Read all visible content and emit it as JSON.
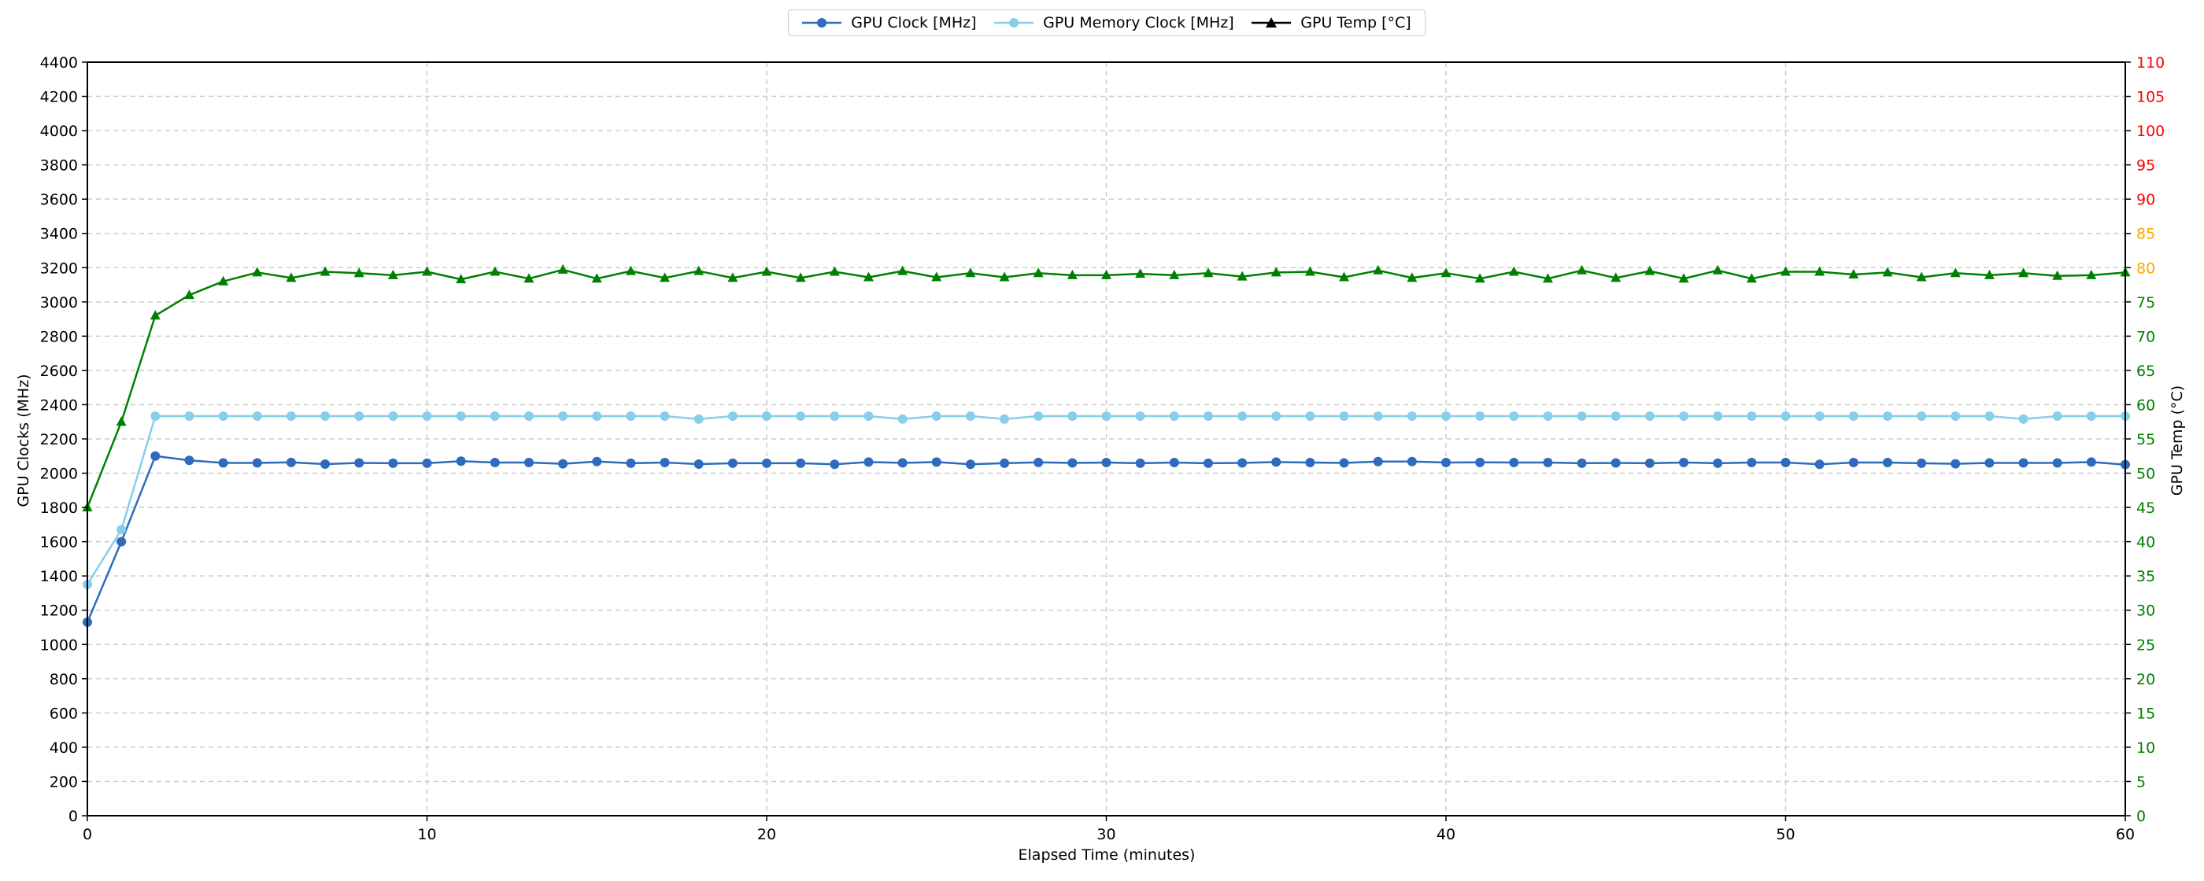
{
  "chart_data": {
    "type": "line",
    "title": "",
    "xlabel": "Elapsed Time (minutes)",
    "ylabel": "GPU Clocks (MHz)",
    "y2label": "GPU Temp (°C)",
    "xlim": [
      0,
      60
    ],
    "ylim": [
      0,
      4400
    ],
    "y2lim": [
      0,
      110
    ],
    "grid": true,
    "legend_position": "top-center",
    "x_ticks": [
      "0",
      "10",
      "20",
      "30",
      "40",
      "50",
      "60"
    ],
    "y_ticks": [
      "0",
      "200",
      "400",
      "600",
      "800",
      "1000",
      "1200",
      "1400",
      "1600",
      "1800",
      "2000",
      "2200",
      "2400",
      "2600",
      "2800",
      "3000",
      "3200",
      "3400",
      "3600",
      "3800",
      "4000",
      "4200",
      "4400"
    ],
    "y2_ticks": [
      {
        "label": "0",
        "color": "#008000"
      },
      {
        "label": "5",
        "color": "#008000"
      },
      {
        "label": "10",
        "color": "#008000"
      },
      {
        "label": "15",
        "color": "#008000"
      },
      {
        "label": "20",
        "color": "#008000"
      },
      {
        "label": "25",
        "color": "#008000"
      },
      {
        "label": "30",
        "color": "#008000"
      },
      {
        "label": "35",
        "color": "#008000"
      },
      {
        "label": "40",
        "color": "#008000"
      },
      {
        "label": "45",
        "color": "#008000"
      },
      {
        "label": "50",
        "color": "#008000"
      },
      {
        "label": "55",
        "color": "#008000"
      },
      {
        "label": "60",
        "color": "#008000"
      },
      {
        "label": "65",
        "color": "#008000"
      },
      {
        "label": "70",
        "color": "#008000"
      },
      {
        "label": "75",
        "color": "#008000"
      },
      {
        "label": "80",
        "color": "#FFA500"
      },
      {
        "label": "85",
        "color": "#FFA500"
      },
      {
        "label": "90",
        "color": "#FF0000"
      },
      {
        "label": "95",
        "color": "#FF0000"
      },
      {
        "label": "100",
        "color": "#FF0000"
      },
      {
        "label": "105",
        "color": "#FF0000"
      },
      {
        "label": "110",
        "color": "#FF0000"
      }
    ],
    "x": [
      0,
      1,
      2,
      3,
      4,
      5,
      6,
      7,
      8,
      9,
      10,
      11,
      12,
      13,
      14,
      15,
      16,
      17,
      18,
      19,
      20,
      21,
      22,
      23,
      24,
      25,
      26,
      27,
      28,
      29,
      30,
      31,
      32,
      33,
      34,
      35,
      36,
      37,
      38,
      39,
      40,
      41,
      42,
      43,
      44,
      45,
      46,
      47,
      48,
      49,
      50,
      51,
      52,
      53,
      54,
      55,
      56,
      57,
      58,
      59,
      60
    ],
    "series": [
      {
        "name": "GPU Clock [MHz]",
        "axis": "left",
        "color": "#2e6bbd",
        "marker": "circle",
        "values": [
          1130,
          1600,
          2100,
          2075,
          2060,
          2060,
          2063,
          2053,
          2060,
          2058,
          2058,
          2070,
          2062,
          2062,
          2055,
          2068,
          2058,
          2062,
          2053,
          2058,
          2058,
          2058,
          2052,
          2065,
          2060,
          2065,
          2052,
          2058,
          2063,
          2060,
          2062,
          2058,
          2062,
          2058,
          2060,
          2065,
          2062,
          2060,
          2068,
          2068,
          2062,
          2063,
          2062,
          2062,
          2058,
          2060,
          2058,
          2062,
          2058,
          2062,
          2062,
          2052,
          2062,
          2062,
          2058,
          2055,
          2060,
          2060,
          2060,
          2065,
          2050
        ]
      },
      {
        "name": "GPU Memory Clock [MHz]",
        "axis": "left",
        "color": "#87ceeb",
        "marker": "circle",
        "values": [
          1350,
          1670,
          2333,
          2333,
          2333,
          2333,
          2333,
          2333,
          2333,
          2333,
          2333,
          2333,
          2333,
          2333,
          2333,
          2333,
          2333,
          2333,
          2316,
          2333,
          2333,
          2333,
          2333,
          2333,
          2316,
          2333,
          2333,
          2316,
          2333,
          2333,
          2333,
          2333,
          2333,
          2333,
          2333,
          2333,
          2333,
          2333,
          2333,
          2333,
          2333,
          2333,
          2333,
          2333,
          2333,
          2333,
          2333,
          2333,
          2333,
          2333,
          2333,
          2333,
          2333,
          2333,
          2333,
          2333,
          2333,
          2316,
          2333,
          2333,
          2333
        ]
      },
      {
        "name": "GPU Temp [°C]",
        "axis": "right",
        "color": "#008000",
        "marker": "triangle",
        "values": [
          45,
          57.5,
          73,
          76,
          78,
          79.3,
          78.5,
          79.4,
          79.2,
          78.9,
          79.4,
          78.3,
          79.4,
          78.4,
          79.7,
          78.4,
          79.5,
          78.5,
          79.5,
          78.5,
          79.4,
          78.5,
          79.4,
          78.6,
          79.5,
          78.6,
          79.2,
          78.6,
          79.2,
          78.9,
          78.9,
          79.1,
          78.9,
          79.2,
          78.7,
          79.3,
          79.4,
          78.6,
          79.6,
          78.5,
          79.2,
          78.4,
          79.4,
          78.4,
          79.6,
          78.5,
          79.5,
          78.4,
          79.6,
          78.4,
          79.4,
          79.4,
          79,
          79.3,
          78.6,
          79.2,
          78.9,
          79.2,
          78.8,
          78.9,
          79.3
        ]
      }
    ]
  }
}
